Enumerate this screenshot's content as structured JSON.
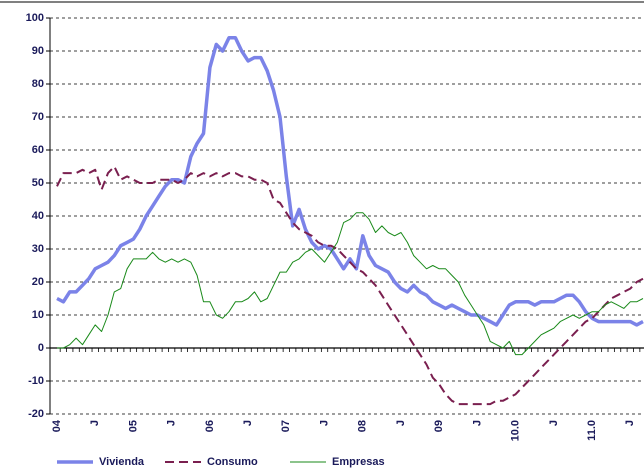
{
  "chart_data": {
    "type": "line",
    "categories": [
      "04",
      null,
      null,
      null,
      null,
      null,
      "J",
      null,
      null,
      null,
      null,
      null,
      "05",
      null,
      null,
      null,
      null,
      null,
      "J",
      null,
      null,
      null,
      null,
      null,
      "06",
      null,
      null,
      null,
      null,
      null,
      "J",
      null,
      null,
      null,
      null,
      null,
      "07",
      null,
      null,
      null,
      null,
      null,
      "J",
      null,
      null,
      null,
      null,
      null,
      "08",
      null,
      null,
      null,
      null,
      null,
      "J",
      null,
      null,
      null,
      null,
      null,
      "09",
      null,
      null,
      null,
      null,
      null,
      "J",
      null,
      null,
      null,
      null,
      null,
      "10.0",
      null,
      null,
      null,
      null,
      null,
      "J",
      null,
      null,
      null,
      null,
      null,
      "11.0",
      null,
      null,
      null,
      null,
      null,
      "J",
      null,
      null
    ],
    "series": [
      {
        "name": "Vivienda",
        "color": "#7b83e8",
        "line_width": 3.5,
        "dashed": false,
        "values": [
          15,
          14,
          17,
          17,
          19,
          21,
          24,
          25,
          26,
          28,
          31,
          32,
          33,
          36,
          40,
          43,
          46,
          49,
          51,
          51,
          50,
          58,
          62,
          65,
          85,
          92,
          90,
          94,
          94,
          90,
          87,
          88,
          88,
          84,
          78,
          70,
          52,
          37,
          42,
          36,
          32,
          30,
          31,
          30,
          27,
          24,
          27,
          24,
          34,
          28,
          25,
          24,
          23,
          20,
          18,
          17,
          19,
          17,
          16,
          14,
          13,
          12,
          13,
          12,
          11,
          10,
          10,
          9,
          8,
          7,
          10,
          13,
          14,
          14,
          14,
          13,
          14,
          14,
          14,
          15,
          16,
          16,
          14,
          11,
          9,
          8,
          8,
          8,
          8,
          8,
          8,
          7,
          8
        ]
      },
      {
        "name": "Consumo",
        "color": "#7a1f4f",
        "line_width": 2,
        "dashed": true,
        "values": [
          49,
          53,
          53,
          53,
          54,
          53,
          54,
          48,
          53,
          55,
          51,
          52,
          51,
          50,
          50,
          50,
          51,
          51,
          51,
          50,
          51,
          53,
          52,
          53,
          52,
          53,
          52,
          53,
          53,
          52,
          52,
          51,
          51,
          50,
          45,
          44,
          41,
          38,
          36,
          35,
          34,
          32,
          31,
          31,
          30,
          28,
          26,
          24,
          23,
          21,
          19,
          16,
          13,
          10,
          7,
          4,
          1,
          -2,
          -5,
          -9,
          -11,
          -14,
          -16,
          -17,
          -17,
          -17,
          -17,
          -17,
          -17,
          -16,
          -16,
          -15,
          -14,
          -12,
          -10,
          -8,
          -6,
          -4,
          -2,
          0,
          2,
          4,
          6,
          8,
          9,
          11,
          13,
          15,
          16,
          17,
          18,
          20,
          21
        ]
      },
      {
        "name": "Empresas",
        "color": "#1a8a1a",
        "line_width": 1,
        "dashed": false,
        "values": [
          0,
          0,
          1,
          3,
          1,
          4,
          7,
          5,
          10,
          17,
          18,
          24,
          27,
          27,
          27,
          29,
          27,
          26,
          27,
          26,
          27,
          26,
          22,
          14,
          14,
          10,
          9,
          11,
          14,
          14,
          15,
          17,
          14,
          15,
          19,
          23,
          23,
          26,
          27,
          29,
          30,
          28,
          26,
          29,
          32,
          38,
          39,
          41,
          41,
          39,
          35,
          37,
          35,
          34,
          35,
          32,
          28,
          26,
          24,
          25,
          24,
          24,
          22,
          20,
          16,
          13,
          10,
          7,
          2,
          1,
          0,
          2,
          -2,
          -2,
          0,
          2,
          4,
          5,
          6,
          8,
          9,
          10,
          9,
          10,
          11,
          11,
          13,
          14,
          13,
          12,
          14,
          14,
          15
        ]
      }
    ],
    "ylim": [
      -20,
      100
    ],
    "yticks": [
      -20,
      -10,
      0,
      10,
      20,
      30,
      40,
      50,
      60,
      70,
      80,
      90,
      100
    ],
    "grid": true
  }
}
